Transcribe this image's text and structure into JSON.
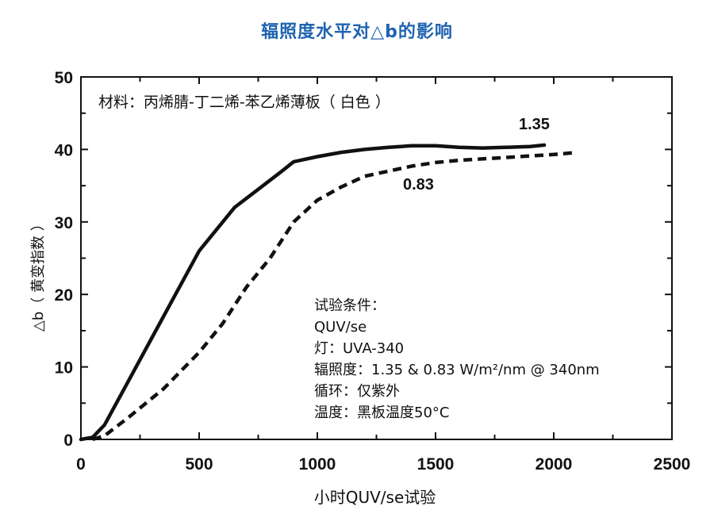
{
  "chart_data": {
    "type": "line",
    "title": "辐照度水平对△b的影响",
    "xlabel": "小时QUV/se试验",
    "ylabel": "△b（ 黄变指数 ）",
    "xlim": [
      0,
      2500
    ],
    "ylim": [
      0,
      50
    ],
    "x_ticks": [
      0,
      500,
      1000,
      1500,
      2000,
      2500
    ],
    "y_ticks": [
      0,
      10,
      20,
      30,
      40,
      50
    ],
    "grid": false,
    "legend": "none",
    "annotations": {
      "material": "材料：丙烯腈-丁二烯-苯乙烯薄板（ 白色 ）",
      "conditions": [
        "试验条件：",
        "QUV/se",
        "灯：UVA-340",
        "辐照度：1.35 & 0.83 W/m²/nm @ 340nm",
        "循环：仅紫外",
        "温度：黑板温度50°C"
      ]
    },
    "series": [
      {
        "name": "1.35",
        "style": "solid",
        "points": [
          [
            0,
            0
          ],
          [
            50,
            0.3
          ],
          [
            100,
            2
          ],
          [
            200,
            8
          ],
          [
            300,
            14
          ],
          [
            400,
            20
          ],
          [
            500,
            26
          ],
          [
            600,
            30
          ],
          [
            650,
            32
          ],
          [
            750,
            34.5
          ],
          [
            850,
            37
          ],
          [
            900,
            38.3
          ],
          [
            1000,
            39
          ],
          [
            1100,
            39.6
          ],
          [
            1200,
            40
          ],
          [
            1300,
            40.3
          ],
          [
            1400,
            40.5
          ],
          [
            1500,
            40.5
          ],
          [
            1600,
            40.3
          ],
          [
            1700,
            40.2
          ],
          [
            1800,
            40.3
          ],
          [
            1900,
            40.4
          ],
          [
            1960,
            40.6
          ]
        ]
      },
      {
        "name": "0.83",
        "style": "dashed",
        "points": [
          [
            50,
            0
          ],
          [
            100,
            0.5
          ],
          [
            200,
            3
          ],
          [
            350,
            7
          ],
          [
            500,
            12
          ],
          [
            600,
            16
          ],
          [
            700,
            21
          ],
          [
            800,
            25
          ],
          [
            900,
            30
          ],
          [
            1000,
            33
          ],
          [
            1100,
            34.8
          ],
          [
            1200,
            36.3
          ],
          [
            1300,
            37
          ],
          [
            1400,
            37.7
          ],
          [
            1500,
            38.2
          ],
          [
            1600,
            38.5
          ],
          [
            1700,
            38.7
          ],
          [
            1800,
            38.9
          ],
          [
            1900,
            39.1
          ],
          [
            2000,
            39.3
          ],
          [
            2100,
            39.6
          ]
        ]
      }
    ]
  }
}
